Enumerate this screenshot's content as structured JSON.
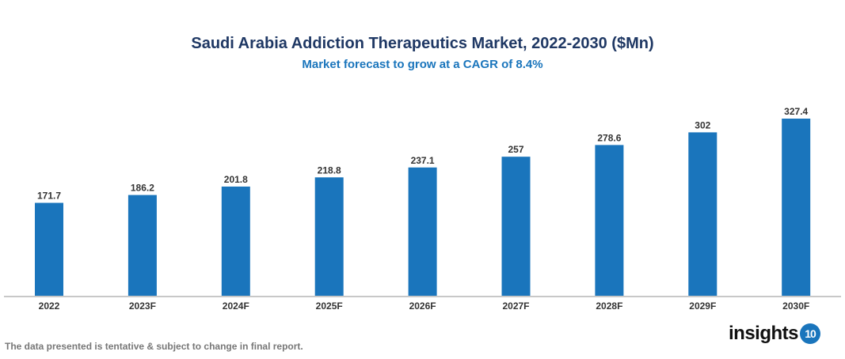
{
  "chart_data": {
    "type": "bar",
    "title": "Saudi Arabia Addiction Therapeutics Market, 2022-2030 ($Mn)",
    "subtitle": "Market forecast to grow at a CAGR of 8.4%",
    "categories": [
      "2022",
      "2023F",
      "2024F",
      "2025F",
      "2026F",
      "2027F",
      "2028F",
      "2029F",
      "2030F"
    ],
    "values": [
      171.7,
      186.2,
      201.8,
      218.8,
      237.1,
      257,
      278.6,
      302,
      327.4
    ],
    "xlabel": "",
    "ylabel": "",
    "ylim": [
      0,
      327.4
    ],
    "grid": false,
    "bar_color": "#1a75bc"
  },
  "footnote": "The data presented is tentative & subject to change in final report.",
  "logo": {
    "text": "insights",
    "badge": "10"
  }
}
